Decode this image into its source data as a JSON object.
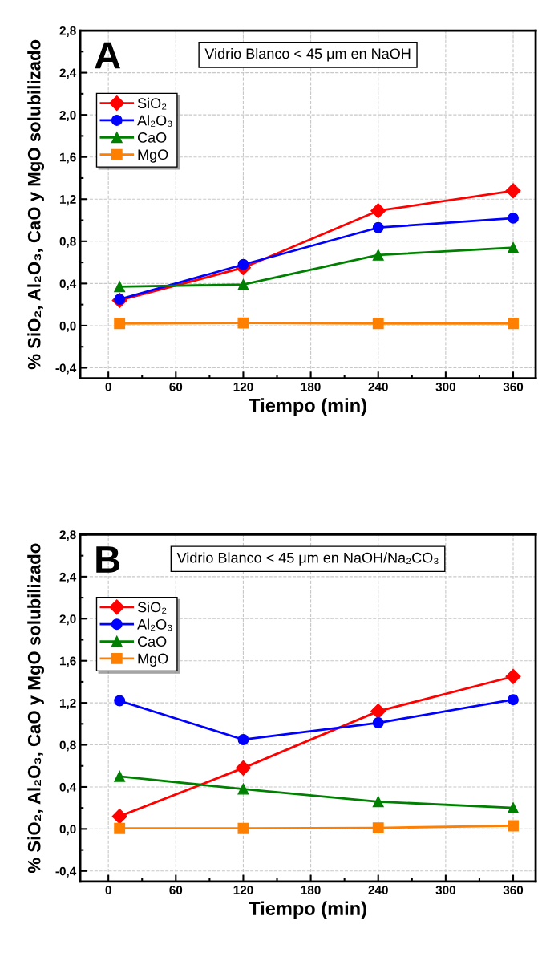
{
  "chart_data": [
    {
      "type": "line",
      "title": "Vidrio Blanco < 45 μm en NaOH",
      "annotations": [
        "A"
      ],
      "xlabel": "Tiempo (min)",
      "ylabel": "% SiO₂, Al₂O₃, CaO y MgO solubilizado",
      "x": [
        10,
        120,
        240,
        360
      ],
      "series": [
        {
          "name": "SiO₂",
          "color": "#ff0000",
          "marker": "diamond",
          "values": [
            0.24,
            0.55,
            1.09,
            1.28
          ]
        },
        {
          "name": "Al₂O₃",
          "color": "#0000ff",
          "marker": "circle",
          "values": [
            0.25,
            0.58,
            0.93,
            1.02
          ]
        },
        {
          "name": "CaO",
          "color": "#008000",
          "marker": "triangle",
          "values": [
            0.37,
            0.39,
            0.67,
            0.74
          ]
        },
        {
          "name": "MgO",
          "color": "#ff8000",
          "marker": "square",
          "values": [
            0.02,
            0.025,
            0.02,
            0.02
          ]
        }
      ],
      "xlim": [
        -25,
        380
      ],
      "xticks": [
        0,
        60,
        120,
        180,
        240,
        300,
        360
      ],
      "ylim": [
        -0.5,
        2.8
      ],
      "yticks": [
        {
          "value": -0.4,
          "label": "-0,4"
        },
        {
          "value": 0,
          "label": "0,0"
        },
        {
          "value": 0.4,
          "label": "0,4"
        },
        {
          "value": 0.8,
          "label": "0,8"
        },
        {
          "value": 1.2,
          "label": "1,2"
        },
        {
          "value": 1.6,
          "label": "1,6"
        },
        {
          "value": 2.0,
          "label": "2,0"
        },
        {
          "value": 2.4,
          "label": "2,4"
        },
        {
          "value": 2.8,
          "label": "2,8"
        }
      ],
      "grid": true,
      "legend": "top left",
      "line_style": "solid"
    },
    {
      "type": "line",
      "title": "Vidrio Blanco < 45 μm en NaOH/Na₂CO₃",
      "annotations": [
        "B"
      ],
      "xlabel": "Tiempo (min)",
      "ylabel": "% SiO₂, Al₂O₃, CaO y MgO solubilizado",
      "x": [
        10,
        120,
        240,
        360
      ],
      "series": [
        {
          "name": "SiO₂",
          "color": "#ff0000",
          "marker": "diamond",
          "values": [
            0.12,
            0.58,
            1.12,
            1.45
          ]
        },
        {
          "name": "Al₂O₃",
          "color": "#0000ff",
          "marker": "circle",
          "values": [
            1.22,
            0.85,
            1.01,
            1.23
          ]
        },
        {
          "name": "CaO",
          "color": "#008000",
          "marker": "triangle",
          "values": [
            0.5,
            0.38,
            0.26,
            0.2
          ]
        },
        {
          "name": "MgO",
          "color": "#ff8000",
          "marker": "square",
          "values": [
            0.005,
            0.005,
            0.01,
            0.03
          ]
        }
      ],
      "xlim": [
        -25,
        380
      ],
      "xticks": [
        0,
        60,
        120,
        180,
        240,
        300,
        360
      ],
      "ylim": [
        -0.5,
        2.8
      ],
      "yticks": [
        {
          "value": -0.4,
          "label": "-0,4"
        },
        {
          "value": 0,
          "label": "0,0"
        },
        {
          "value": 0.4,
          "label": "0,4"
        },
        {
          "value": 0.8,
          "label": "0,8"
        },
        {
          "value": 1.2,
          "label": "1,2"
        },
        {
          "value": 1.6,
          "label": "1,6"
        },
        {
          "value": 2.0,
          "label": "2,0"
        },
        {
          "value": 2.4,
          "label": "2,4"
        },
        {
          "value": 2.8,
          "label": "2,8"
        }
      ],
      "grid": true,
      "legend": "top left",
      "line_style": "solid"
    }
  ]
}
